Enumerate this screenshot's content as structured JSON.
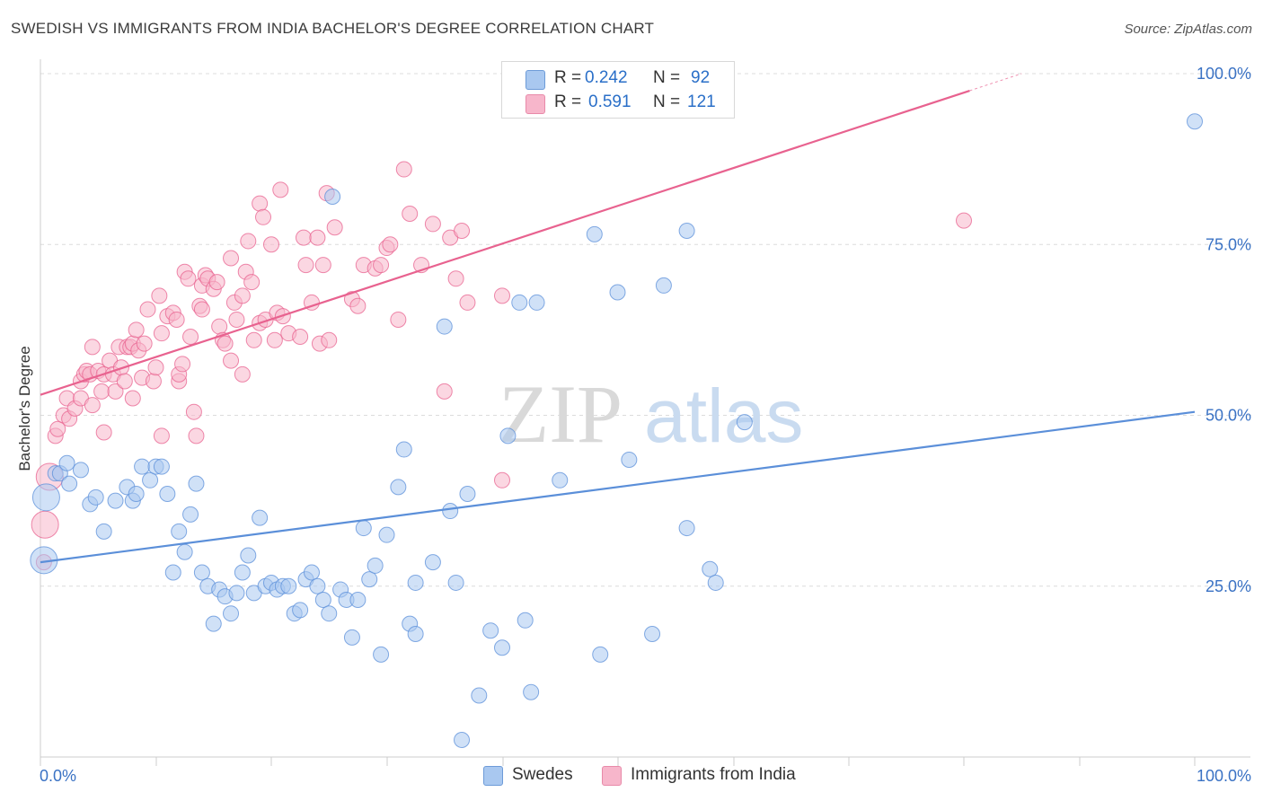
{
  "title": "SWEDISH VS IMMIGRANTS FROM INDIA BACHELOR'S DEGREE CORRELATION CHART",
  "source": "Source: ZipAtlas.com",
  "watermark": {
    "part1": "ZIP",
    "part2": "atlas"
  },
  "legend": {
    "rows": [
      {
        "r_label": "R =",
        "r_value": "0.242",
        "n_label": "N =",
        "n_value": "92",
        "color": "#a9c8f0"
      },
      {
        "r_label": "R =",
        "r_value": "0.591",
        "n_label": "N =",
        "n_value": "121",
        "color": "#f7b6cb"
      }
    ]
  },
  "bottom_legend": [
    {
      "label": "Swedes",
      "color": "#a9c8f0"
    },
    {
      "label": "Immigrants from India",
      "color": "#f7b6cb"
    }
  ],
  "chart_data": {
    "type": "scatter",
    "title": "SWEDISH VS IMMIGRANTS FROM INDIA BACHELOR'S DEGREE CORRELATION CHART",
    "xlabel": "",
    "ylabel": "Bachelor's Degree",
    "xlim": [
      0,
      100
    ],
    "ylim": [
      0,
      100
    ],
    "x_tick_labels": [
      "0.0%",
      "100.0%"
    ],
    "y_tick_labels": [
      "25.0%",
      "50.0%",
      "75.0%",
      "100.0%"
    ],
    "y_ticks": [
      25,
      50,
      75,
      100
    ],
    "grid": "horizontal dashed",
    "legend_position": "top-center",
    "series": [
      {
        "name": "Swedes",
        "color": "#5b8fd9",
        "fill": "#a9c8f0",
        "trend": {
          "x": [
            0,
            100
          ],
          "y": [
            28.5,
            50.5
          ]
        },
        "points": [
          [
            0.3,
            28.8
          ],
          [
            0.5,
            38
          ],
          [
            1.3,
            41.5
          ],
          [
            1.7,
            41.5
          ],
          [
            2.3,
            43
          ],
          [
            2.5,
            40
          ],
          [
            3.5,
            42
          ],
          [
            4.3,
            37
          ],
          [
            4.8,
            38
          ],
          [
            5.5,
            33
          ],
          [
            6.5,
            37.5
          ],
          [
            7.5,
            39.5
          ],
          [
            8,
            37.5
          ],
          [
            8.3,
            38.5
          ],
          [
            8.8,
            42.5
          ],
          [
            9.5,
            40.5
          ],
          [
            10,
            42.5
          ],
          [
            10.5,
            42.5
          ],
          [
            11,
            38.5
          ],
          [
            11.5,
            27
          ],
          [
            12,
            33
          ],
          [
            12.5,
            30
          ],
          [
            13,
            35.5
          ],
          [
            13.5,
            40
          ],
          [
            14,
            27
          ],
          [
            14.5,
            25
          ],
          [
            15,
            19.5
          ],
          [
            15.5,
            24.5
          ],
          [
            16,
            23.5
          ],
          [
            16.5,
            21
          ],
          [
            17,
            24
          ],
          [
            17.5,
            27
          ],
          [
            18,
            29.5
          ],
          [
            18.5,
            24
          ],
          [
            19,
            35
          ],
          [
            19.5,
            25
          ],
          [
            20,
            25.5
          ],
          [
            20.5,
            24.5
          ],
          [
            21,
            25
          ],
          [
            21.5,
            25
          ],
          [
            22,
            21
          ],
          [
            22.5,
            21.5
          ],
          [
            23,
            26
          ],
          [
            23.5,
            27
          ],
          [
            24,
            25
          ],
          [
            24.5,
            23
          ],
          [
            25,
            21
          ],
          [
            25.3,
            82
          ],
          [
            26,
            24.5
          ],
          [
            26.5,
            23
          ],
          [
            27,
            17.5
          ],
          [
            27.5,
            23
          ],
          [
            28,
            33.5
          ],
          [
            28.5,
            26
          ],
          [
            29,
            28
          ],
          [
            29.5,
            15
          ],
          [
            30,
            32.5
          ],
          [
            31,
            39.5
          ],
          [
            31.5,
            45
          ],
          [
            32,
            19.5
          ],
          [
            32.5,
            18
          ],
          [
            32.5,
            25.5
          ],
          [
            34,
            28.5
          ],
          [
            35,
            63
          ],
          [
            35.5,
            36
          ],
          [
            36,
            25.5
          ],
          [
            36.5,
            2.5
          ],
          [
            37,
            38.5
          ],
          [
            38,
            9
          ],
          [
            39,
            18.5
          ],
          [
            40,
            16
          ],
          [
            40.5,
            47
          ],
          [
            41.5,
            66.5
          ],
          [
            42,
            20
          ],
          [
            42.5,
            9.5
          ],
          [
            43,
            66.5
          ],
          [
            45,
            40.5
          ],
          [
            48,
            76.5
          ],
          [
            48.5,
            15
          ],
          [
            50,
            68
          ],
          [
            51,
            43.5
          ],
          [
            53,
            18
          ],
          [
            54,
            69
          ],
          [
            56,
            77
          ],
          [
            56,
            33.5
          ],
          [
            58,
            27.5
          ],
          [
            58.5,
            25.5
          ],
          [
            61,
            49
          ],
          [
            100,
            93
          ]
        ],
        "large_points": [
          [
            0.3,
            28.8
          ],
          [
            0.5,
            38
          ],
          [
            1.5,
            41.5
          ]
        ]
      },
      {
        "name": "Immigrants from India",
        "color": "#e8628f",
        "fill": "#f7b6cb",
        "trend": {
          "x": [
            0,
            80.5
          ],
          "y": [
            53,
            97.5
          ]
        },
        "trend_dashed_to": {
          "x": 85,
          "y": 100
        },
        "points": [
          [
            0.3,
            28.5
          ],
          [
            0.4,
            34
          ],
          [
            0.8,
            41
          ],
          [
            1.3,
            47
          ],
          [
            1.5,
            48
          ],
          [
            2,
            50
          ],
          [
            2.3,
            52.5
          ],
          [
            2.5,
            49.5
          ],
          [
            3,
            51
          ],
          [
            3.5,
            52.5
          ],
          [
            3.5,
            55
          ],
          [
            3.8,
            56
          ],
          [
            4,
            56.5
          ],
          [
            4.3,
            56
          ],
          [
            4.5,
            51.5
          ],
          [
            4.5,
            60
          ],
          [
            5,
            56.5
          ],
          [
            5.3,
            53.5
          ],
          [
            5.5,
            47.5
          ],
          [
            5.5,
            56
          ],
          [
            6,
            58
          ],
          [
            6.3,
            56
          ],
          [
            6.5,
            53.5
          ],
          [
            6.8,
            60
          ],
          [
            7,
            57
          ],
          [
            7.3,
            55
          ],
          [
            7.5,
            60
          ],
          [
            7.8,
            60
          ],
          [
            8,
            52.5
          ],
          [
            8,
            60.5
          ],
          [
            8.3,
            62.5
          ],
          [
            8.5,
            59.5
          ],
          [
            8.8,
            55.5
          ],
          [
            9,
            60.5
          ],
          [
            9.3,
            65.5
          ],
          [
            9.8,
            55
          ],
          [
            10,
            57
          ],
          [
            10.3,
            67.5
          ],
          [
            10.5,
            47
          ],
          [
            10.5,
            62
          ],
          [
            11,
            64.5
          ],
          [
            11.5,
            65
          ],
          [
            11.8,
            64
          ],
          [
            12,
            55
          ],
          [
            12,
            56
          ],
          [
            12.3,
            57.5
          ],
          [
            12.5,
            71
          ],
          [
            12.8,
            70
          ],
          [
            13,
            61.5
          ],
          [
            13.3,
            50.5
          ],
          [
            13.5,
            47
          ],
          [
            13.8,
            66
          ],
          [
            14,
            65.5
          ],
          [
            14,
            69
          ],
          [
            14.3,
            70.5
          ],
          [
            14.5,
            70
          ],
          [
            15,
            68.5
          ],
          [
            15.3,
            69.5
          ],
          [
            15.5,
            63
          ],
          [
            15.8,
            61
          ],
          [
            16,
            60.5
          ],
          [
            16.5,
            73
          ],
          [
            16.5,
            58
          ],
          [
            16.8,
            66.5
          ],
          [
            17,
            64
          ],
          [
            17.5,
            67.5
          ],
          [
            17.5,
            56
          ],
          [
            17.8,
            71
          ],
          [
            18,
            75.5
          ],
          [
            18.3,
            69.5
          ],
          [
            18.5,
            61
          ],
          [
            19,
            81
          ],
          [
            19,
            63.5
          ],
          [
            19.3,
            79
          ],
          [
            19.5,
            64
          ],
          [
            20,
            75
          ],
          [
            20.3,
            61
          ],
          [
            20.5,
            65
          ],
          [
            20.8,
            83
          ],
          [
            21,
            64.5
          ],
          [
            21.5,
            62
          ],
          [
            22.5,
            61.5
          ],
          [
            22.8,
            76
          ],
          [
            23,
            72
          ],
          [
            23.5,
            66.5
          ],
          [
            24,
            76
          ],
          [
            24.2,
            60.5
          ],
          [
            24.5,
            72
          ],
          [
            24.8,
            82.5
          ],
          [
            25,
            61
          ],
          [
            25.5,
            77.5
          ],
          [
            27,
            67
          ],
          [
            27.5,
            66
          ],
          [
            28,
            72
          ],
          [
            29,
            71.5
          ],
          [
            29.5,
            72
          ],
          [
            30,
            74.5
          ],
          [
            30.3,
            75
          ],
          [
            31,
            64
          ],
          [
            31.5,
            86
          ],
          [
            32,
            79.5
          ],
          [
            33,
            72
          ],
          [
            34,
            78
          ],
          [
            35,
            53.5
          ],
          [
            35.5,
            76
          ],
          [
            36,
            70
          ],
          [
            36.5,
            77
          ],
          [
            37,
            66.5
          ],
          [
            40,
            40.5
          ],
          [
            40,
            67.5
          ],
          [
            80,
            78.5
          ]
        ],
        "large_points": [
          [
            0.4,
            34
          ],
          [
            0.8,
            41
          ]
        ]
      }
    ]
  }
}
